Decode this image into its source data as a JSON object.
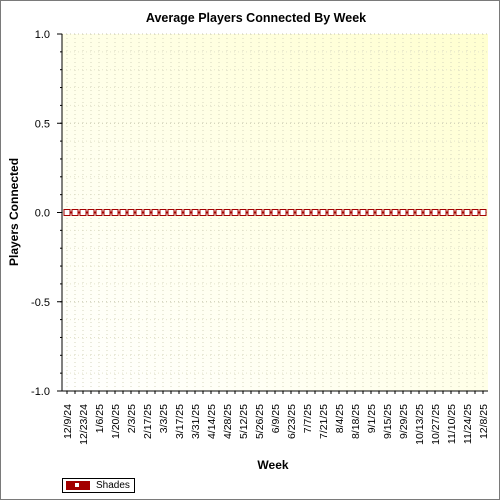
{
  "chart_data": {
    "type": "line",
    "title": "Average Players Connected By Week",
    "xlabel": "Week",
    "ylabel": "Players Connected",
    "ylim": [
      -1.0,
      1.0
    ],
    "yticks": [
      "1.0",
      "0.5",
      "0.0",
      "-0.5",
      "-1.0"
    ],
    "x": [
      "12/9/24",
      "12/16/24",
      "12/23/24",
      "12/30/24",
      "1/6/25",
      "1/13/25",
      "1/20/25",
      "1/27/25",
      "2/3/25",
      "2/10/25",
      "2/17/25",
      "2/24/25",
      "3/3/25",
      "3/10/25",
      "3/17/25",
      "3/24/25",
      "3/31/25",
      "4/7/25",
      "4/14/25",
      "4/21/25",
      "4/28/25",
      "5/5/25",
      "5/12/25",
      "5/19/25",
      "5/26/25",
      "6/2/25",
      "6/9/25",
      "6/16/25",
      "6/23/25",
      "6/30/25",
      "7/7/25",
      "7/14/25",
      "7/21/25",
      "7/28/25",
      "8/4/25",
      "8/11/25",
      "8/18/25",
      "8/25/25",
      "9/1/25",
      "9/8/25",
      "9/15/25",
      "9/22/25",
      "9/29/25",
      "10/6/25",
      "10/13/25",
      "10/20/25",
      "10/27/25",
      "11/3/25",
      "11/10/25",
      "11/17/25",
      "11/24/25",
      "12/1/25",
      "12/8/25"
    ],
    "x_tick_labels_shown": [
      "12/9/24",
      "12/23/24",
      "1/6/25",
      "1/20/25",
      "2/3/25",
      "2/17/25",
      "3/3/25",
      "3/17/25",
      "3/31/25",
      "4/14/25",
      "4/28/25",
      "5/12/25",
      "5/26/25",
      "6/9/25",
      "6/23/25",
      "7/7/25",
      "7/21/25",
      "8/4/25",
      "8/18/25",
      "9/1/25",
      "9/15/25",
      "9/29/25",
      "10/13/25",
      "10/27/25",
      "11/10/25",
      "11/24/25",
      "12/8/25"
    ],
    "series": [
      {
        "name": "Shades",
        "color": "#a30000",
        "values": [
          0,
          0,
          0,
          0,
          0,
          0,
          0,
          0,
          0,
          0,
          0,
          0,
          0,
          0,
          0,
          0,
          0,
          0,
          0,
          0,
          0,
          0,
          0,
          0,
          0,
          0,
          0,
          0,
          0,
          0,
          0,
          0,
          0,
          0,
          0,
          0,
          0,
          0,
          0,
          0,
          0,
          0,
          0,
          0,
          0,
          0,
          0,
          0,
          0,
          0,
          0,
          0,
          0
        ]
      }
    ],
    "grid": true,
    "legend_position": "bottom-left",
    "plot_background": [
      "#ffffff",
      "#ffffd0"
    ]
  }
}
